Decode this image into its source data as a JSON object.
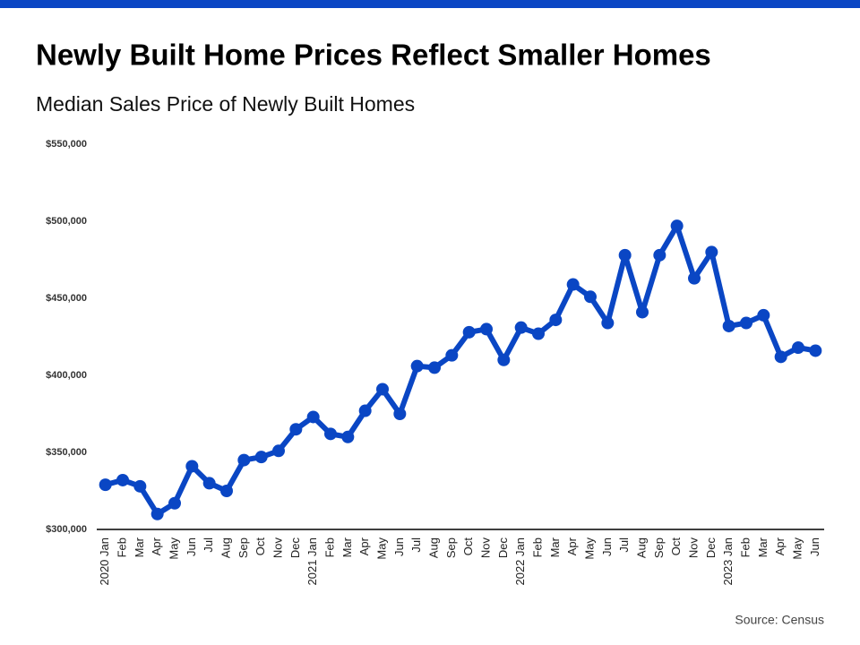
{
  "chart_data": {
    "type": "line",
    "title": "Newly Built Home Prices Reflect Smaller Homes",
    "subtitle": "Median Sales Price of Newly Built Homes",
    "source": "Source: Census",
    "categories": [
      "2020 Jan",
      "Feb",
      "Mar",
      "Apr",
      "May",
      "Jun",
      "Jul",
      "Aug",
      "Sep",
      "Oct",
      "Nov",
      "Dec",
      "2021 Jan",
      "Feb",
      "Mar",
      "Apr",
      "May",
      "Jun",
      "Jul",
      "Aug",
      "Sep",
      "Oct",
      "Nov",
      "Dec",
      "2022 Jan",
      "Feb",
      "Mar",
      "Apr",
      "May",
      "Jun",
      "Jul",
      "Aug",
      "Sep",
      "Oct",
      "Nov",
      "Dec",
      "2023 Jan",
      "Feb",
      "Mar",
      "Apr",
      "May",
      "Jun"
    ],
    "values": [
      329000,
      332000,
      328000,
      310000,
      317000,
      341000,
      330000,
      325000,
      345000,
      347000,
      351000,
      365000,
      373000,
      362000,
      360000,
      377000,
      391000,
      375000,
      406000,
      405000,
      413000,
      428000,
      430000,
      410000,
      431000,
      427000,
      436000,
      459000,
      451000,
      434000,
      478000,
      441000,
      478000,
      497000,
      463000,
      480000,
      432000,
      434000,
      439000,
      412000,
      418000,
      416000
    ],
    "color": "#0a46c4",
    "ylim": [
      300000,
      550000
    ],
    "yticks": [
      {
        "value": 300000,
        "label": "$300,000"
      },
      {
        "value": 350000,
        "label": "$350,000"
      },
      {
        "value": 400000,
        "label": "$400,000"
      },
      {
        "value": 450000,
        "label": "$450,000"
      },
      {
        "value": 500000,
        "label": "$500,000"
      },
      {
        "value": 550000,
        "label": "$550,000"
      }
    ],
    "grid": false
  }
}
